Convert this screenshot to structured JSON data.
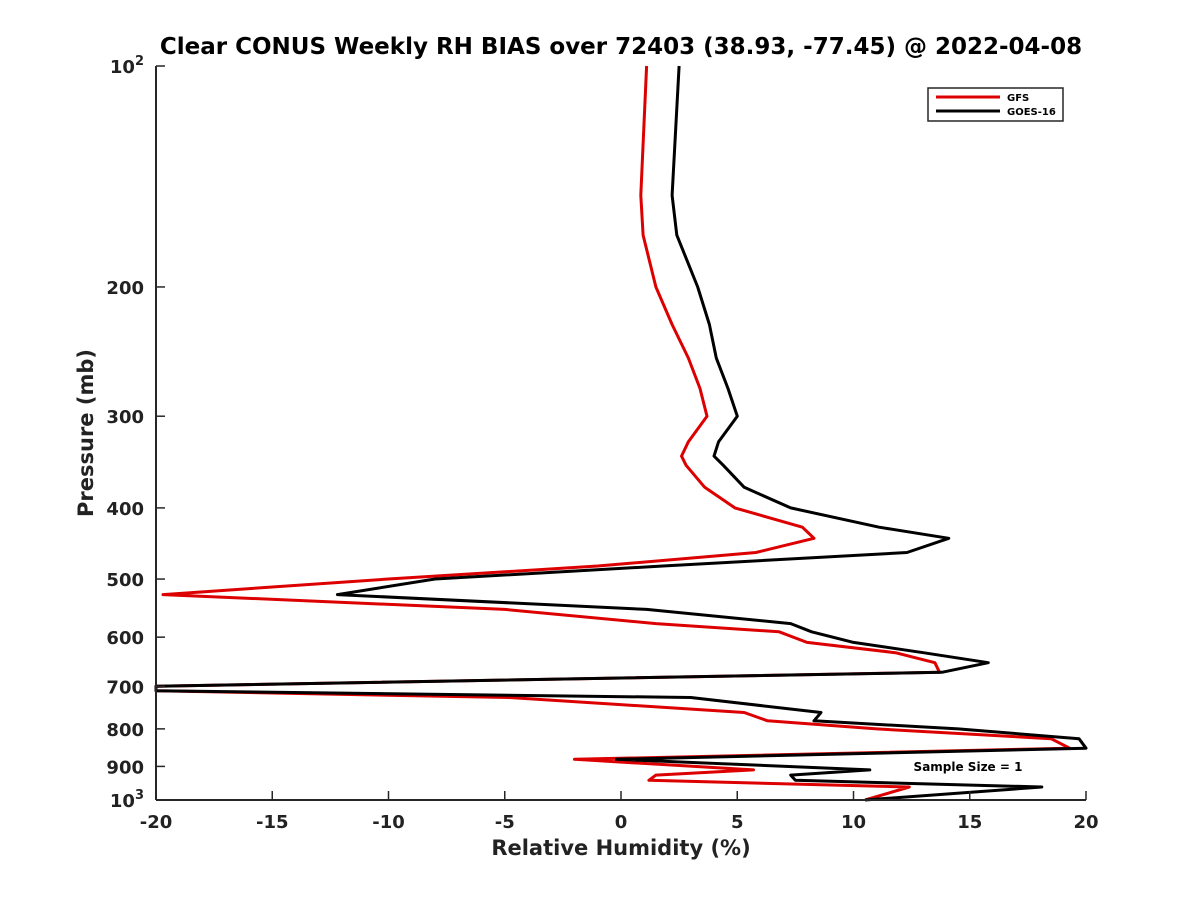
{
  "chart_data": {
    "type": "line",
    "title": "Clear CONUS Weekly RH BIAS over 72403 (38.93, -77.45) @ 2022-04-08",
    "xlabel": "Relative Humidity (%)",
    "ylabel": "Pressure (mb)",
    "xlim": [
      -20,
      20
    ],
    "ylim": [
      100,
      1000
    ],
    "yscale": "log",
    "y_reversed": true,
    "grid": false,
    "legend_position": "top-right",
    "x_ticks": [
      "-20",
      "-15",
      "-10",
      "-5",
      "0",
      "5",
      "10",
      "15",
      "20"
    ],
    "y_ticks": [
      {
        "value": 100,
        "base": "10",
        "exp": "2"
      },
      {
        "value": 200,
        "label": "200"
      },
      {
        "value": 300,
        "label": "300"
      },
      {
        "value": 400,
        "label": "400"
      },
      {
        "value": 500,
        "label": "500"
      },
      {
        "value": 600,
        "label": "600"
      },
      {
        "value": 700,
        "label": "700"
      },
      {
        "value": 800,
        "label": "800"
      },
      {
        "value": 900,
        "label": "900"
      },
      {
        "value": 1000,
        "base": "10",
        "exp": "3"
      }
    ],
    "annotation": "Sample Size = 1",
    "series": [
      {
        "name": "GFS",
        "color": "#dd0000",
        "points": [
          [
            1.1,
            100
          ],
          [
            0.85,
            150
          ],
          [
            0.95,
            170
          ],
          [
            1.5,
            200
          ],
          [
            2.2,
            225
          ],
          [
            2.9,
            250
          ],
          [
            3.4,
            275
          ],
          [
            3.7,
            300
          ],
          [
            2.9,
            325
          ],
          [
            2.6,
            340
          ],
          [
            2.8,
            350
          ],
          [
            3.6,
            375
          ],
          [
            4.9,
            400
          ],
          [
            7.8,
            425
          ],
          [
            8.3,
            440
          ],
          [
            5.8,
            460
          ],
          [
            -1.0,
            480
          ],
          [
            -10.0,
            500
          ],
          [
            -19.7,
            525
          ],
          [
            -5.0,
            550
          ],
          [
            1.5,
            575
          ],
          [
            6.8,
            590
          ],
          [
            8.0,
            610
          ],
          [
            11.8,
            630
          ],
          [
            13.5,
            650
          ],
          [
            13.7,
            670
          ],
          [
            -20.0,
            700
          ],
          [
            -20.0,
            710
          ],
          [
            -4.8,
            725
          ],
          [
            5.3,
            760
          ],
          [
            6.3,
            780
          ],
          [
            11.0,
            800
          ],
          [
            18.5,
            825
          ],
          [
            19.3,
            850
          ],
          [
            -2.0,
            880
          ],
          [
            5.7,
            910
          ],
          [
            1.5,
            925
          ],
          [
            1.2,
            940
          ],
          [
            12.4,
            960
          ],
          [
            10.5,
            1000
          ]
        ]
      },
      {
        "name": "GOES-16",
        "color": "#000000",
        "points": [
          [
            2.5,
            100
          ],
          [
            2.2,
            150
          ],
          [
            2.4,
            170
          ],
          [
            3.3,
            200
          ],
          [
            3.8,
            225
          ],
          [
            4.1,
            250
          ],
          [
            4.6,
            275
          ],
          [
            5.0,
            300
          ],
          [
            4.2,
            325
          ],
          [
            4.0,
            340
          ],
          [
            4.4,
            350
          ],
          [
            5.3,
            375
          ],
          [
            7.3,
            400
          ],
          [
            11.1,
            425
          ],
          [
            14.1,
            440
          ],
          [
            12.3,
            460
          ],
          [
            1.8,
            480
          ],
          [
            -8.0,
            500
          ],
          [
            -12.2,
            525
          ],
          [
            1.1,
            550
          ],
          [
            7.3,
            575
          ],
          [
            8.2,
            590
          ],
          [
            10.0,
            610
          ],
          [
            13.0,
            630
          ],
          [
            15.8,
            650
          ],
          [
            13.8,
            670
          ],
          [
            -20.0,
            700
          ],
          [
            -20.0,
            710
          ],
          [
            3.0,
            725
          ],
          [
            8.6,
            760
          ],
          [
            8.3,
            780
          ],
          [
            14.5,
            800
          ],
          [
            19.7,
            825
          ],
          [
            20.0,
            850
          ],
          [
            -0.2,
            880
          ],
          [
            10.7,
            910
          ],
          [
            7.3,
            925
          ],
          [
            7.5,
            940
          ],
          [
            18.1,
            960
          ],
          [
            10.5,
            1000
          ]
        ]
      }
    ]
  }
}
